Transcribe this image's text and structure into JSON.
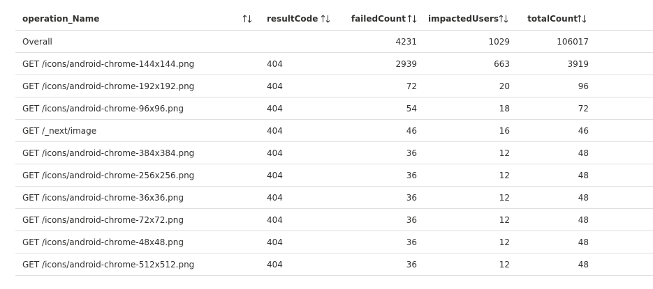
{
  "table": {
    "header": [
      "operation_Name",
      "resultCode",
      "failedCount",
      "impactedUsers",
      "totalCount"
    ],
    "rows": [
      [
        "Overall",
        null,
        4231,
        1029,
        106017
      ],
      [
        "GET /icons/android-chrome-144x144.png",
        404,
        2939,
        663,
        3919
      ],
      [
        "GET /icons/android-chrome-192x192.png",
        404,
        72,
        20,
        96
      ],
      [
        "GET /icons/android-chrome-96x96.png",
        404,
        54,
        18,
        72
      ],
      [
        "GET /_next/image",
        404,
        46,
        16,
        46
      ],
      [
        "GET /icons/android-chrome-384x384.png",
        404,
        36,
        12,
        48
      ],
      [
        "GET /icons/android-chrome-256x256.png",
        404,
        36,
        12,
        48
      ],
      [
        "GET /icons/android-chrome-36x36.png",
        404,
        36,
        12,
        48
      ],
      [
        "GET /icons/android-chrome-72x72.png",
        404,
        36,
        12,
        48
      ],
      [
        "GET /icons/android-chrome-48x48.png",
        404,
        36,
        12,
        48
      ],
      [
        "GET /icons/android-chrome-512x512.png",
        404,
        36,
        12,
        48
      ]
    ]
  }
}
